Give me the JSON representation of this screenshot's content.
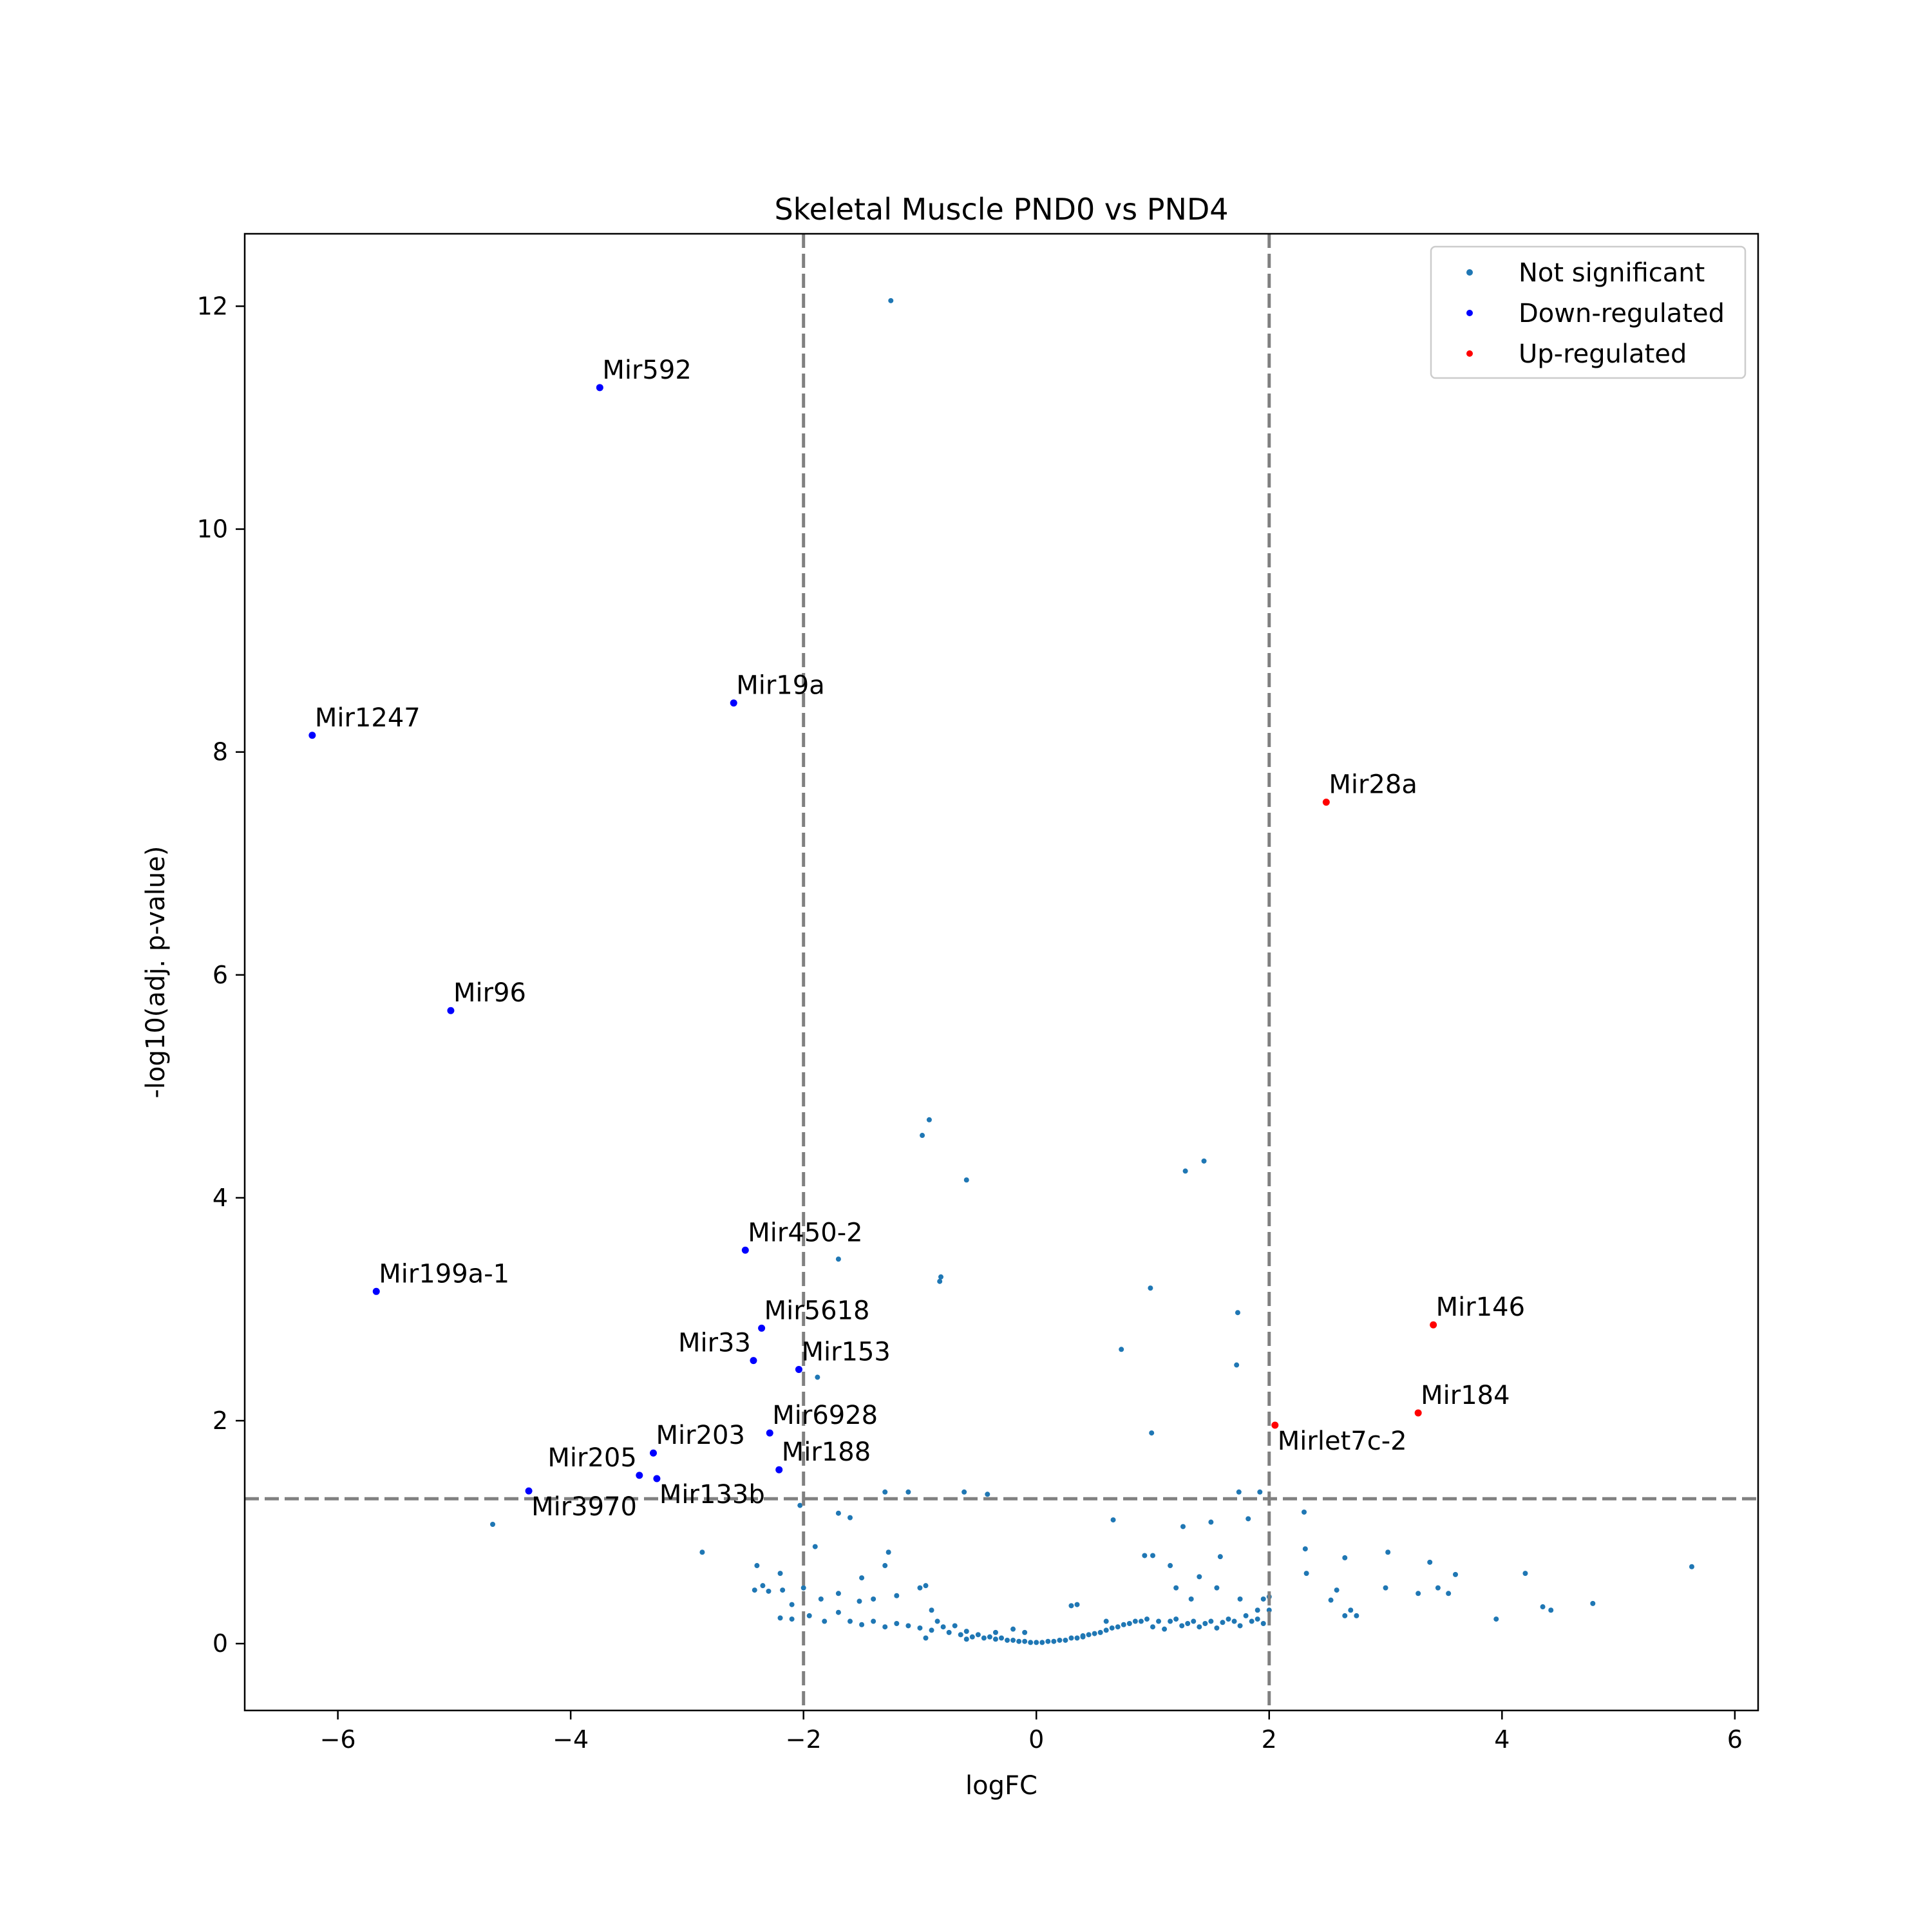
{
  "chart_data": {
    "type": "scatter",
    "title": "Skeletal Muscle PND0 vs PND4",
    "xlabel": "logFC",
    "ylabel": "-log10(adj. p-value)",
    "xlim": [
      -6.8,
      6.2
    ],
    "ylim": [
      -0.6,
      12.65
    ],
    "x_ticks": [
      -6,
      -4,
      -2,
      0,
      2,
      4,
      6
    ],
    "y_ticks": [
      0,
      2,
      4,
      6,
      8,
      10,
      12
    ],
    "grid": false,
    "legend_position": "top-right",
    "thresholds": {
      "logfc": [
        -2,
        2
      ],
      "neg_log10_p": 1.3
    },
    "series": [
      {
        "name": "Not significant",
        "color": "#1f77b4",
        "points": [
          [
            -1.25,
            12.05
          ],
          [
            -0.92,
            4.7
          ],
          [
            -0.98,
            4.56
          ],
          [
            -0.6,
            4.16
          ],
          [
            1.28,
            4.24
          ],
          [
            1.44,
            4.33
          ],
          [
            -1.7,
            3.45
          ],
          [
            -0.82,
            3.29
          ],
          [
            -0.83,
            3.25
          ],
          [
            0.98,
            3.19
          ],
          [
            1.73,
            2.97
          ],
          [
            0.73,
            2.64
          ],
          [
            1.72,
            2.5
          ],
          [
            -1.88,
            2.39
          ],
          [
            0.99,
            1.89
          ],
          [
            -1.3,
            1.36
          ],
          [
            -1.1,
            1.36
          ],
          [
            -0.62,
            1.36
          ],
          [
            -0.42,
            1.34
          ],
          [
            1.74,
            1.36
          ],
          [
            1.92,
            1.36
          ],
          [
            -2.03,
            1.24
          ],
          [
            -1.7,
            1.17
          ],
          [
            -1.6,
            1.13
          ],
          [
            0.66,
            1.11
          ],
          [
            1.26,
            1.05
          ],
          [
            1.5,
            1.09
          ],
          [
            1.82,
            1.12
          ],
          [
            2.3,
            1.18
          ],
          [
            -4.67,
            1.07
          ],
          [
            -2.87,
            0.82
          ],
          [
            -1.9,
            0.87
          ],
          [
            -1.27,
            0.82
          ],
          [
            0.93,
            0.79
          ],
          [
            1.0,
            0.79
          ],
          [
            1.15,
            0.7
          ],
          [
            1.4,
            0.6
          ],
          [
            1.58,
            0.78
          ],
          [
            2.31,
            0.85
          ],
          [
            2.65,
            0.77
          ],
          [
            3.02,
            0.82
          ],
          [
            3.38,
            0.73
          ],
          [
            3.6,
            0.62
          ],
          [
            4.2,
            0.63
          ],
          [
            5.63,
            0.69
          ],
          [
            -2.4,
            0.7
          ],
          [
            -2.2,
            0.63
          ],
          [
            -2.0,
            0.5
          ],
          [
            -1.5,
            0.59
          ],
          [
            -1.3,
            0.7
          ],
          [
            -1.0,
            0.5
          ],
          [
            -0.95,
            0.52
          ],
          [
            2.32,
            0.63
          ],
          [
            2.53,
            0.39
          ],
          [
            2.58,
            0.48
          ],
          [
            2.65,
            0.25
          ],
          [
            2.7,
            0.3
          ],
          [
            2.75,
            0.25
          ],
          [
            3.0,
            0.5
          ],
          [
            3.28,
            0.45
          ],
          [
            3.45,
            0.5
          ],
          [
            3.54,
            0.45
          ],
          [
            3.95,
            0.22
          ],
          [
            4.35,
            0.33
          ],
          [
            4.42,
            0.3
          ],
          [
            4.78,
            0.36
          ],
          [
            -2.42,
            0.48
          ],
          [
            -2.35,
            0.52
          ],
          [
            -2.3,
            0.47
          ],
          [
            -2.18,
            0.48
          ],
          [
            -2.1,
            0.35
          ],
          [
            -1.85,
            0.4
          ],
          [
            -1.7,
            0.45
          ],
          [
            -1.52,
            0.38
          ],
          [
            -1.4,
            0.4
          ],
          [
            -1.2,
            0.43
          ],
          [
            -0.9,
            0.3
          ],
          [
            1.2,
            0.5
          ],
          [
            1.33,
            0.4
          ],
          [
            1.55,
            0.5
          ],
          [
            1.75,
            0.4
          ],
          [
            1.9,
            0.3
          ],
          [
            1.95,
            0.4
          ],
          [
            2.0,
            0.42
          ],
          [
            -2.2,
            0.23
          ],
          [
            -2.1,
            0.22
          ],
          [
            -1.95,
            0.25
          ],
          [
            -1.82,
            0.2
          ],
          [
            -1.7,
            0.28
          ],
          [
            -1.6,
            0.2
          ],
          [
            -1.5,
            0.17
          ],
          [
            -1.4,
            0.2
          ],
          [
            -1.3,
            0.15
          ],
          [
            -1.2,
            0.18
          ],
          [
            -1.1,
            0.16
          ],
          [
            -1.0,
            0.14
          ],
          [
            -0.9,
            0.12
          ],
          [
            -0.85,
            0.2
          ],
          [
            -0.8,
            0.15
          ],
          [
            -0.75,
            0.1
          ],
          [
            -0.7,
            0.16
          ],
          [
            -0.65,
            0.08
          ],
          [
            -0.6,
            0.11
          ],
          [
            -0.55,
            0.06
          ],
          [
            -0.5,
            0.08
          ],
          [
            -0.45,
            0.05
          ],
          [
            -0.4,
            0.06
          ],
          [
            -0.35,
            0.04
          ],
          [
            -0.3,
            0.05
          ],
          [
            -0.25,
            0.03
          ],
          [
            -0.2,
            0.03
          ],
          [
            -0.15,
            0.02
          ],
          [
            -0.1,
            0.02
          ],
          [
            -0.05,
            0.01
          ],
          [
            0.0,
            0.01
          ],
          [
            0.05,
            0.01
          ],
          [
            0.1,
            0.02
          ],
          [
            0.15,
            0.02
          ],
          [
            0.2,
            0.03
          ],
          [
            0.25,
            0.03
          ],
          [
            0.3,
            0.05
          ],
          [
            0.35,
            0.05
          ],
          [
            0.4,
            0.06
          ],
          [
            0.45,
            0.08
          ],
          [
            0.5,
            0.09
          ],
          [
            0.55,
            0.1
          ],
          [
            0.6,
            0.12
          ],
          [
            0.65,
            0.14
          ],
          [
            0.7,
            0.15
          ],
          [
            0.75,
            0.17
          ],
          [
            0.8,
            0.18
          ],
          [
            0.85,
            0.2
          ],
          [
            0.9,
            0.2
          ],
          [
            0.95,
            0.22
          ],
          [
            1.0,
            0.15
          ],
          [
            1.05,
            0.2
          ],
          [
            1.1,
            0.13
          ],
          [
            1.15,
            0.2
          ],
          [
            1.2,
            0.22
          ],
          [
            1.25,
            0.16
          ],
          [
            1.3,
            0.18
          ],
          [
            1.35,
            0.2
          ],
          [
            1.4,
            0.15
          ],
          [
            1.45,
            0.18
          ],
          [
            1.5,
            0.2
          ],
          [
            1.55,
            0.14
          ],
          [
            1.6,
            0.19
          ],
          [
            1.65,
            0.22
          ],
          [
            1.7,
            0.2
          ],
          [
            1.75,
            0.16
          ],
          [
            1.8,
            0.25
          ],
          [
            1.85,
            0.2
          ],
          [
            1.9,
            0.22
          ],
          [
            1.95,
            0.18
          ],
          [
            2.0,
            0.3
          ],
          [
            -0.95,
            0.05
          ],
          [
            -0.6,
            0.04
          ],
          [
            -0.35,
            0.1
          ],
          [
            0.3,
            0.34
          ],
          [
            0.35,
            0.35
          ],
          [
            0.6,
            0.2
          ],
          [
            -0.2,
            0.13
          ],
          [
            -0.1,
            0.1
          ],
          [
            0.4,
            0.07
          ]
        ]
      },
      {
        "name": "Down-regulated",
        "color": "#0000ff",
        "points": [
          {
            "x": -3.75,
            "y": 11.27,
            "label": "Mir592",
            "anchor": "start",
            "dx": 1,
            "dy": -1
          },
          {
            "x": -2.6,
            "y": 8.44,
            "label": "Mir19a",
            "anchor": "start",
            "dx": 1,
            "dy": -1
          },
          {
            "x": -6.22,
            "y": 8.15,
            "label": "Mir1247",
            "anchor": "start",
            "dx": 1,
            "dy": -1
          },
          {
            "x": -5.03,
            "y": 5.68,
            "label": "Mir96",
            "anchor": "start",
            "dx": 1,
            "dy": -1
          },
          {
            "x": -2.5,
            "y": 3.53,
            "label": "Mir450-2",
            "anchor": "start",
            "dx": 1,
            "dy": -1
          },
          {
            "x": -5.67,
            "y": 3.16,
            "label": "Mir199a-1",
            "anchor": "start",
            "dx": 1,
            "dy": -1
          },
          {
            "x": -2.36,
            "y": 2.83,
            "label": "Mir5618",
            "anchor": "start",
            "dx": 1,
            "dy": -1
          },
          {
            "x": -2.43,
            "y": 2.54,
            "label": "Mir33",
            "anchor": "end",
            "dx": -1,
            "dy": -1
          },
          {
            "x": -2.04,
            "y": 2.46,
            "label": "Mir153",
            "anchor": "start",
            "dx": 1,
            "dy": -1
          },
          {
            "x": -2.29,
            "y": 1.89,
            "label": "Mir6928",
            "anchor": "start",
            "dx": 1,
            "dy": -1
          },
          {
            "x": -3.29,
            "y": 1.71,
            "label": "Mir203",
            "anchor": "start",
            "dx": 1,
            "dy": -1
          },
          {
            "x": -2.21,
            "y": 1.56,
            "label": "Mir188",
            "anchor": "start",
            "dx": 1,
            "dy": -1
          },
          {
            "x": -3.41,
            "y": 1.51,
            "label": "Mir205",
            "anchor": "end",
            "dx": -1,
            "dy": -1
          },
          {
            "x": -3.26,
            "y": 1.48,
            "label": "Mir133b",
            "anchor": "start",
            "dx": 1,
            "dy": 1
          },
          {
            "x": -4.36,
            "y": 1.37,
            "label": "Mir3970",
            "anchor": "start",
            "dx": 1,
            "dy": 1
          }
        ]
      },
      {
        "name": "Up-regulated",
        "color": "#ff0000",
        "points": [
          {
            "x": 2.49,
            "y": 7.55,
            "label": "Mir28a",
            "anchor": "start",
            "dx": 1,
            "dy": -1
          },
          {
            "x": 3.41,
            "y": 2.86,
            "label": "Mir146",
            "anchor": "start",
            "dx": 1,
            "dy": -1
          },
          {
            "x": 3.28,
            "y": 2.07,
            "label": "Mir184",
            "anchor": "start",
            "dx": 1,
            "dy": -1
          },
          {
            "x": 2.05,
            "y": 1.96,
            "label": "Mirlet7c-2",
            "anchor": "start",
            "dx": 1,
            "dy": 1
          }
        ]
      }
    ]
  }
}
